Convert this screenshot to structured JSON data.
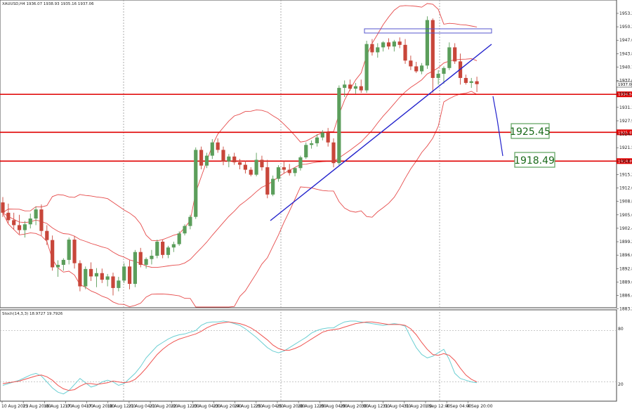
{
  "header": {
    "symbol_line": "XAUUSD,H4  1936.07 1938.93 1935.16 1937.06",
    "indicator_line": "Stoch(14,3,3) 18.9727 19.7926"
  },
  "chart_data": {
    "type": "candlestick",
    "symbol": "XAUUSD",
    "timeframe": "H4",
    "ohlc_header": {
      "open": 1936.07,
      "high": 1938.93,
      "low": 1935.16,
      "close": 1937.06
    },
    "price_axis": {
      "min": 1883.2,
      "max": 1956.6,
      "ticks": [
        "1953.30",
        "1950.30",
        "1947.05",
        "1943.85",
        "1940.70",
        "1937.60",
        "1934.35",
        "1931.15",
        "1927.95",
        "1924.80",
        "1921.55",
        "1918.35",
        "1915.20",
        "1912.00",
        "1908.80",
        "1905.60",
        "1902.40",
        "1899.25",
        "1896.00",
        "1892.80",
        "1889.60",
        "1886.40",
        "1883.25"
      ]
    },
    "time_axis": {
      "labels": [
        "10 Aug 2023",
        "15 Aug 20:00",
        "16 Aug 12:00",
        "17 Aug 04:00",
        "17 Aug 20:00",
        "18 Aug 12:00",
        "21 Aug 04:00",
        "21 Aug 20:00",
        "22 Aug 12:00",
        "23 Aug 04:00",
        "23 Aug 20:00",
        "24 Aug 12:00",
        "25 Aug 04:00",
        "25 Aug 20:00",
        "28 Aug 12:00",
        "29 Aug 04:00",
        "29 Aug 20:00",
        "30 Aug 12:00",
        "31 Aug 04:00",
        "31 Aug 20:00",
        "1 Sep 12:00",
        "4 Sep 04:00",
        "4 Sep 20:00"
      ]
    },
    "horizontal_levels": [
      {
        "price": 1934.64,
        "label": "1934.64",
        "color": "#e00000"
      },
      {
        "price": 1925.45,
        "label": "1925.45",
        "color": "#e00000"
      },
      {
        "price": 1918.49,
        "label": "1918.49",
        "color": "#e00000"
      }
    ],
    "current_price": {
      "price": 1937.06,
      "label": "1937.06"
    },
    "target_labels": [
      "1925.45",
      "1918.49"
    ],
    "candles": [
      [
        1908.5,
        1909.8,
        1905.0,
        1906.0
      ],
      [
        1906.0,
        1908.2,
        1903.5,
        1904.2
      ],
      [
        1904.2,
        1906.0,
        1902.0,
        1903.0
      ],
      [
        1903.0,
        1905.5,
        1900.8,
        1901.8
      ],
      [
        1901.8,
        1904.0,
        1900.0,
        1903.2
      ],
      [
        1903.2,
        1905.8,
        1902.2,
        1904.6
      ],
      [
        1904.6,
        1907.5,
        1903.0,
        1906.8
      ],
      [
        1906.8,
        1908.0,
        1900.5,
        1901.6
      ],
      [
        1901.6,
        1903.0,
        1898.2,
        1899.4
      ],
      [
        1899.4,
        1900.5,
        1892.0,
        1892.8
      ],
      [
        1892.8,
        1894.5,
        1890.5,
        1893.4
      ],
      [
        1893.4,
        1895.0,
        1892.0,
        1894.6
      ],
      [
        1894.6,
        1900.0,
        1893.5,
        1899.5
      ],
      [
        1899.5,
        1900.4,
        1892.5,
        1893.8
      ],
      [
        1893.8,
        1894.5,
        1887.0,
        1888.2
      ],
      [
        1888.2,
        1893.0,
        1887.5,
        1892.4
      ],
      [
        1892.4,
        1894.0,
        1889.5,
        1890.6
      ],
      [
        1890.6,
        1892.6,
        1888.0,
        1891.4
      ],
      [
        1891.4,
        1892.5,
        1889.0,
        1889.8
      ],
      [
        1889.8,
        1891.2,
        1888.2,
        1890.6
      ],
      [
        1890.6,
        1891.5,
        1886.0,
        1887.8
      ],
      [
        1887.8,
        1890.5,
        1887.0,
        1889.6
      ],
      [
        1889.6,
        1893.8,
        1889.0,
        1893.0
      ],
      [
        1893.0,
        1894.5,
        1887.5,
        1888.8
      ],
      [
        1888.8,
        1897.0,
        1888.0,
        1896.5
      ],
      [
        1896.5,
        1897.5,
        1892.8,
        1893.4
      ],
      [
        1893.4,
        1895.2,
        1892.5,
        1894.8
      ],
      [
        1894.8,
        1897.0,
        1893.5,
        1895.6
      ],
      [
        1895.6,
        1899.5,
        1895.0,
        1899.0
      ],
      [
        1899.0,
        1899.5,
        1895.0,
        1895.8
      ],
      [
        1895.8,
        1898.0,
        1895.0,
        1897.6
      ],
      [
        1897.6,
        1899.0,
        1896.5,
        1898.4
      ],
      [
        1898.4,
        1901.5,
        1898.0,
        1901.0
      ],
      [
        1901.0,
        1903.2,
        1900.5,
        1902.8
      ],
      [
        1902.8,
        1905.5,
        1902.0,
        1905.0
      ],
      [
        1905.0,
        1921.8,
        1904.5,
        1921.2
      ],
      [
        1921.2,
        1922.0,
        1916.5,
        1917.4
      ],
      [
        1917.4,
        1920.5,
        1916.8,
        1919.8
      ],
      [
        1919.8,
        1923.8,
        1919.0,
        1923.0
      ],
      [
        1923.0,
        1924.0,
        1920.5,
        1921.2
      ],
      [
        1921.2,
        1922.0,
        1917.5,
        1918.4
      ],
      [
        1918.4,
        1920.2,
        1917.0,
        1919.6
      ],
      [
        1919.6,
        1920.5,
        1917.6,
        1918.2
      ],
      [
        1918.2,
        1919.0,
        1916.5,
        1917.6
      ],
      [
        1917.6,
        1918.6,
        1915.5,
        1916.4
      ],
      [
        1916.4,
        1917.0,
        1914.8,
        1915.2
      ],
      [
        1915.2,
        1920.5,
        1914.8,
        1918.8
      ],
      [
        1918.8,
        1919.8,
        1916.2,
        1917.0
      ],
      [
        1917.0,
        1918.8,
        1909.5,
        1910.4
      ],
      [
        1910.4,
        1915.0,
        1910.0,
        1914.2
      ],
      [
        1914.2,
        1917.5,
        1913.5,
        1917.0
      ],
      [
        1917.0,
        1918.5,
        1915.5,
        1916.4
      ],
      [
        1916.4,
        1917.8,
        1915.0,
        1915.6
      ],
      [
        1915.6,
        1917.0,
        1914.8,
        1916.8
      ],
      [
        1916.8,
        1919.8,
        1916.2,
        1919.4
      ],
      [
        1919.4,
        1923.0,
        1919.0,
        1922.4
      ],
      [
        1922.4,
        1923.5,
        1921.5,
        1922.8
      ],
      [
        1922.8,
        1925.0,
        1922.0,
        1924.2
      ],
      [
        1924.2,
        1926.0,
        1923.5,
        1925.4
      ],
      [
        1925.4,
        1926.5,
        1922.0,
        1923.0
      ],
      [
        1923.0,
        1924.0,
        1917.0,
        1918.0
      ],
      [
        1918.0,
        1936.8,
        1917.5,
        1936.2
      ],
      [
        1936.2,
        1938.0,
        1934.0,
        1937.0
      ],
      [
        1937.0,
        1938.2,
        1935.5,
        1936.0
      ],
      [
        1936.0,
        1937.4,
        1934.8,
        1936.6
      ],
      [
        1936.6,
        1938.2,
        1935.0,
        1935.6
      ],
      [
        1935.6,
        1947.6,
        1935.0,
        1946.8
      ],
      [
        1946.8,
        1948.0,
        1944.0,
        1944.8
      ],
      [
        1944.8,
        1947.0,
        1943.5,
        1946.0
      ],
      [
        1946.0,
        1947.5,
        1945.0,
        1947.2
      ],
      [
        1947.2,
        1948.2,
        1945.5,
        1946.2
      ],
      [
        1946.2,
        1947.8,
        1945.0,
        1947.4
      ],
      [
        1947.4,
        1948.4,
        1945.8,
        1946.6
      ],
      [
        1946.6,
        1948.0,
        1942.0,
        1942.8
      ],
      [
        1942.8,
        1944.0,
        1940.5,
        1941.4
      ],
      [
        1941.4,
        1942.5,
        1939.8,
        1940.2
      ],
      [
        1940.2,
        1942.2,
        1939.5,
        1941.6
      ],
      [
        1941.6,
        1953.5,
        1940.8,
        1952.6
      ],
      [
        1952.6,
        1953.0,
        1935.0,
        1938.6
      ],
      [
        1938.6,
        1940.5,
        1937.0,
        1939.6
      ],
      [
        1939.6,
        1941.4,
        1937.2,
        1941.0
      ],
      [
        1941.0,
        1947.2,
        1940.5,
        1946.0
      ],
      [
        1946.0,
        1947.0,
        1942.0,
        1942.6
      ],
      [
        1942.6,
        1944.5,
        1937.0,
        1938.6
      ],
      [
        1938.6,
        1939.4,
        1937.0,
        1937.4
      ],
      [
        1937.4,
        1938.6,
        1936.2,
        1937.8
      ],
      [
        1937.8,
        1938.9,
        1935.2,
        1937.1
      ]
    ],
    "stochastic": {
      "name": "Stoch(14,3,3)",
      "main_value": 18.9727,
      "signal_value": 19.7926,
      "levels": [
        80,
        20
      ],
      "main": [
        16,
        18,
        20,
        22,
        25,
        28,
        30,
        27,
        20,
        13,
        8,
        6,
        10,
        17,
        24,
        19,
        14,
        16,
        20,
        22,
        20,
        16,
        18,
        24,
        30,
        38,
        48,
        55,
        62,
        66,
        70,
        73,
        75,
        76,
        78,
        80,
        86,
        89,
        90,
        90,
        91,
        90,
        88,
        86,
        82,
        77,
        72,
        66,
        60,
        56,
        54,
        56,
        60,
        64,
        68,
        72,
        77,
        80,
        82,
        83,
        83,
        87,
        90,
        91,
        91,
        90,
        89,
        88,
        87,
        86,
        87,
        88,
        87,
        85,
        72,
        60,
        52,
        48,
        50,
        54,
        58,
        46,
        30,
        24,
        22,
        20,
        19
      ],
      "signal": [
        18,
        19,
        20,
        21,
        23,
        25,
        27,
        28,
        26,
        22,
        16,
        12,
        10,
        11,
        15,
        18,
        18,
        17,
        18,
        19,
        21,
        20,
        19,
        20,
        23,
        29,
        36,
        44,
        52,
        58,
        63,
        67,
        70,
        72,
        74,
        76,
        79,
        83,
        86,
        88,
        89,
        90,
        89,
        88,
        86,
        83,
        79,
        74,
        69,
        63,
        59,
        57,
        57,
        59,
        62,
        66,
        70,
        74,
        78,
        80,
        81,
        82,
        84,
        86,
        88,
        89,
        90,
        90,
        89,
        88,
        87,
        87,
        87,
        86,
        82,
        75,
        66,
        58,
        52,
        51,
        53,
        51,
        45,
        36,
        28,
        23,
        20
      ]
    },
    "colors": {
      "bull_candle": "#5b9e5b",
      "bear_candle": "#c8463a",
      "bollinger": "#e64b4b",
      "trendline": "#2222cc",
      "levels": "#e00000",
      "stoch_main": "#6ccfd3",
      "stoch_signal": "#ef5350"
    }
  }
}
